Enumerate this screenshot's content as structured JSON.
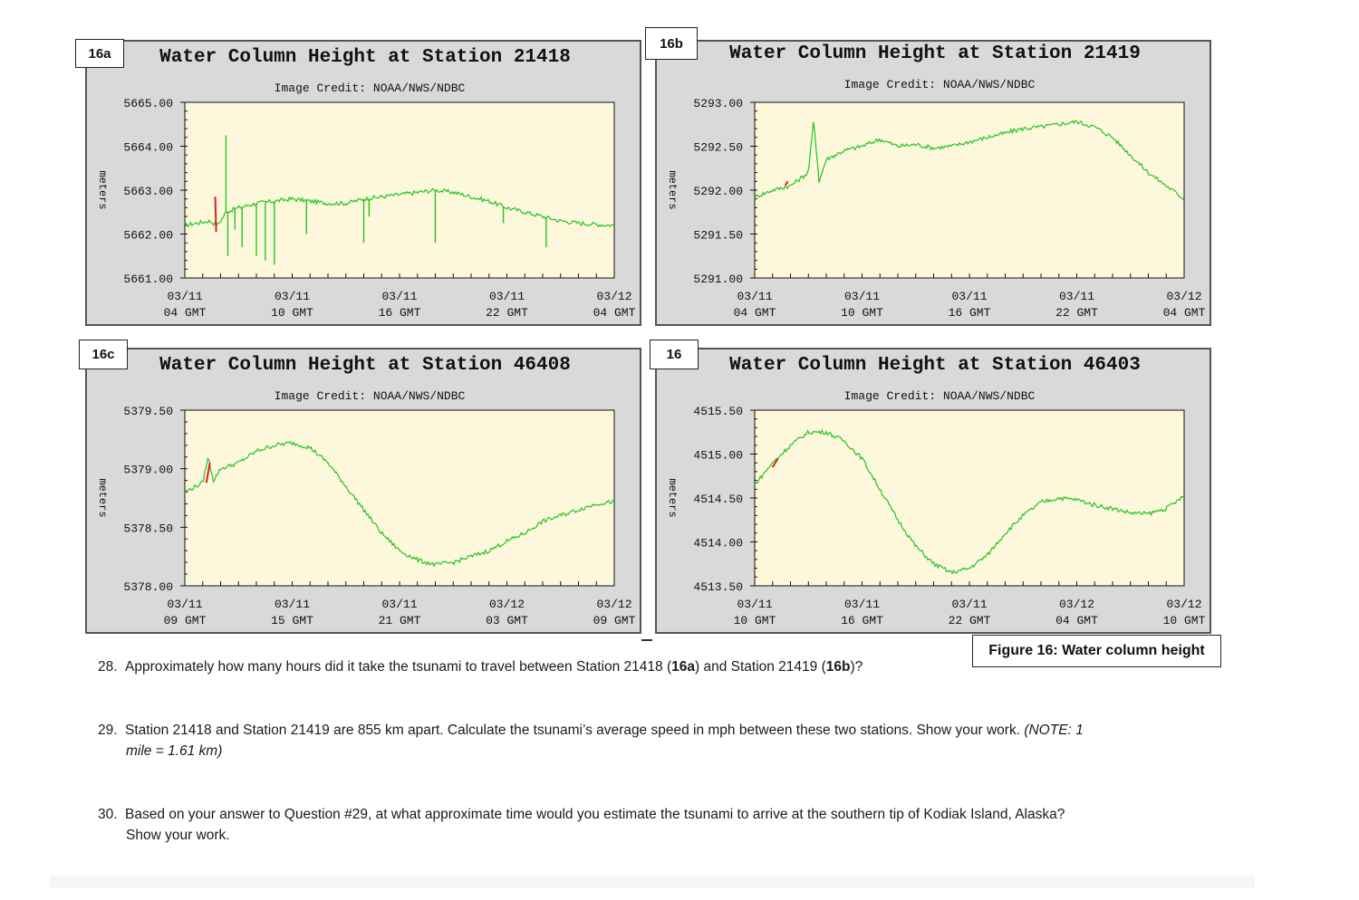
{
  "figure_caption": "Figure 16: Water column height",
  "image_credit": "Image Credit: NOAA/NWS/NDBC",
  "y_unit_label": "meters",
  "colors": {
    "plot_bg": "#fdf8dc",
    "panel_bg": "#d9d9d9",
    "series": "#22c422",
    "highlight": "#e11d1d"
  },
  "chart_data": [
    {
      "tag": "16a",
      "type": "line",
      "title": "Water Column Height at Station 21418",
      "ylabel": "meters",
      "ylim": [
        5661,
        5665
      ],
      "yticks": [
        "5665.00",
        "5664.00",
        "5663.00",
        "5662.00",
        "5661.00"
      ],
      "xticks": [
        [
          "03/11",
          "04 GMT"
        ],
        [
          "03/11",
          "10 GMT"
        ],
        [
          "03/11",
          "16 GMT"
        ],
        [
          "03/11",
          "22 GMT"
        ],
        [
          "03/12",
          "04 GMT"
        ]
      ],
      "x_hours": [
        0,
        24
      ],
      "series": [
        [
          0,
          5662.2
        ],
        [
          1.4,
          5662.3
        ],
        [
          1.8,
          5662.2
        ],
        [
          2,
          5662.3
        ],
        [
          2.3,
          5662.5
        ],
        [
          3,
          5662.6
        ],
        [
          4,
          5662.7
        ],
        [
          5,
          5662.75
        ],
        [
          6,
          5662.8
        ],
        [
          7,
          5662.75
        ],
        [
          8,
          5662.7
        ],
        [
          9,
          5662.7
        ],
        [
          10,
          5662.8
        ],
        [
          11,
          5662.85
        ],
        [
          12,
          5662.9
        ],
        [
          13,
          5662.95
        ],
        [
          14,
          5663.0
        ],
        [
          15,
          5662.95
        ],
        [
          16,
          5662.85
        ],
        [
          17,
          5662.75
        ],
        [
          18,
          5662.6
        ],
        [
          19,
          5662.5
        ],
        [
          20,
          5662.4
        ],
        [
          21,
          5662.3
        ],
        [
          22,
          5662.25
        ],
        [
          23,
          5662.22
        ],
        [
          24,
          5662.2
        ]
      ],
      "spikes": [
        [
          2.3,
          5664.25
        ],
        [
          2.4,
          5661.5
        ],
        [
          2.8,
          5662.1
        ],
        [
          3.2,
          5661.7
        ],
        [
          4,
          5661.5
        ],
        [
          4.5,
          5661.4
        ],
        [
          5,
          5661.3
        ],
        [
          6.8,
          5662.0
        ],
        [
          10,
          5661.8
        ],
        [
          10.3,
          5662.4
        ],
        [
          14,
          5661.8
        ],
        [
          17.8,
          5662.25
        ],
        [
          20.2,
          5661.7
        ]
      ],
      "highlight": [
        [
          1.7,
          5662.85
        ],
        [
          1.75,
          5662.05
        ]
      ]
    },
    {
      "tag": "16b",
      "type": "line",
      "title": "Water Column Height at Station 21419",
      "ylabel": "meters",
      "ylim": [
        5291,
        5293
      ],
      "yticks": [
        "5293.00",
        "5292.50",
        "5292.00",
        "5291.50",
        "5291.00"
      ],
      "xticks": [
        [
          "03/11",
          "04 GMT"
        ],
        [
          "03/11",
          "10 GMT"
        ],
        [
          "03/11",
          "16 GMT"
        ],
        [
          "03/11",
          "22 GMT"
        ],
        [
          "03/12",
          "04 GMT"
        ]
      ],
      "x_hours": [
        0,
        24
      ],
      "series": [
        [
          0,
          5291.92
        ],
        [
          1,
          5292.0
        ],
        [
          2,
          5292.05
        ],
        [
          3,
          5292.2
        ],
        [
          3.3,
          5292.8
        ],
        [
          3.6,
          5292.1
        ],
        [
          4,
          5292.35
        ],
        [
          5,
          5292.45
        ],
        [
          6,
          5292.5
        ],
        [
          7,
          5292.58
        ],
        [
          8,
          5292.5
        ],
        [
          9,
          5292.52
        ],
        [
          10,
          5292.48
        ],
        [
          11,
          5292.5
        ],
        [
          12,
          5292.55
        ],
        [
          13,
          5292.6
        ],
        [
          14,
          5292.65
        ],
        [
          15,
          5292.7
        ],
        [
          16,
          5292.72
        ],
        [
          17,
          5292.75
        ],
        [
          18,
          5292.78
        ],
        [
          19,
          5292.72
        ],
        [
          20,
          5292.6
        ],
        [
          21,
          5292.4
        ],
        [
          22,
          5292.2
        ],
        [
          23,
          5292.05
        ],
        [
          24,
          5291.9
        ]
      ],
      "highlight": [
        [
          1.7,
          5292.05
        ],
        [
          1.85,
          5292.1
        ]
      ]
    },
    {
      "tag": "16c",
      "type": "line",
      "title": "Water Column Height at Station 46408",
      "ylabel": "meters",
      "ylim": [
        5378,
        5379.5
      ],
      "yticks": [
        "5379.50",
        "5379.00",
        "5378.50",
        "5378.00"
      ],
      "xticks": [
        [
          "03/11",
          "09 GMT"
        ],
        [
          "03/11",
          "15 GMT"
        ],
        [
          "03/11",
          "21 GMT"
        ],
        [
          "03/12",
          "03 GMT"
        ],
        [
          "03/12",
          "09 GMT"
        ]
      ],
      "x_hours": [
        0,
        24
      ],
      "series": [
        [
          0,
          5378.8
        ],
        [
          1,
          5378.88
        ],
        [
          1.3,
          5379.1
        ],
        [
          1.6,
          5378.9
        ],
        [
          2,
          5379.0
        ],
        [
          3,
          5379.05
        ],
        [
          4,
          5379.15
        ],
        [
          5,
          5379.2
        ],
        [
          6,
          5379.22
        ],
        [
          7,
          5379.18
        ],
        [
          8,
          5379.05
        ],
        [
          9,
          5378.85
        ],
        [
          10,
          5378.65
        ],
        [
          11,
          5378.45
        ],
        [
          12,
          5378.3
        ],
        [
          13,
          5378.22
        ],
        [
          14,
          5378.18
        ],
        [
          15,
          5378.2
        ],
        [
          16,
          5378.25
        ],
        [
          17,
          5378.3
        ],
        [
          18,
          5378.38
        ],
        [
          19,
          5378.45
        ],
        [
          20,
          5378.55
        ],
        [
          21,
          5378.6
        ],
        [
          22,
          5378.65
        ],
        [
          23,
          5378.7
        ],
        [
          24,
          5378.72
        ]
      ],
      "highlight": [
        [
          1.2,
          5378.88
        ],
        [
          1.4,
          5379.05
        ]
      ]
    },
    {
      "tag": "16",
      "type": "line",
      "title": "Water Column Height at Station 46403",
      "ylabel": "meters",
      "ylim": [
        4513.5,
        4515.5
      ],
      "yticks": [
        "4515.50",
        "4515.00",
        "4514.50",
        "4514.00",
        "4513.50"
      ],
      "xticks": [
        [
          "03/11",
          "10 GMT"
        ],
        [
          "03/11",
          "16 GMT"
        ],
        [
          "03/11",
          "22 GMT"
        ],
        [
          "03/12",
          "04 GMT"
        ],
        [
          "03/12",
          "10 GMT"
        ]
      ],
      "x_hours": [
        0,
        24
      ],
      "series": [
        [
          0,
          4514.65
        ],
        [
          1,
          4514.9
        ],
        [
          2,
          4515.1
        ],
        [
          3,
          4515.25
        ],
        [
          4,
          4515.25
        ],
        [
          5,
          4515.15
        ],
        [
          6,
          4514.95
        ],
        [
          7,
          4514.6
        ],
        [
          8,
          4514.25
        ],
        [
          9,
          4513.95
        ],
        [
          10,
          4513.75
        ],
        [
          11,
          4513.65
        ],
        [
          12,
          4513.7
        ],
        [
          13,
          4513.85
        ],
        [
          14,
          4514.1
        ],
        [
          15,
          4514.3
        ],
        [
          16,
          4514.45
        ],
        [
          17,
          4514.5
        ],
        [
          18,
          4514.48
        ],
        [
          19,
          4514.42
        ],
        [
          20,
          4514.38
        ],
        [
          21,
          4514.33
        ],
        [
          22,
          4514.32
        ],
        [
          23,
          4514.38
        ],
        [
          24,
          4514.52
        ]
      ],
      "highlight": [
        [
          1,
          4514.85
        ],
        [
          1.3,
          4514.95
        ]
      ]
    }
  ],
  "questions": [
    {
      "number": "28.",
      "pre": "Approximately how many hours did it take the tsunami to travel between Station 21418 (",
      "b1": "16a",
      "mid": ") and Station 21419 (",
      "b2": "16b",
      "post": ")?"
    },
    {
      "number": "29.",
      "line1": "Station 21418 and Station 21419 are 855 km apart. Calculate the tsunami’s average speed in mph between these two stations. Show your work.",
      "note1": "(NOTE: 1",
      "note2": "mile = 1.61 km)"
    },
    {
      "number": "30.",
      "line1": "Based on your answer to Question #29, at what approximate time would you estimate the tsunami to arrive at the southern tip of Kodiak Island, Alaska?",
      "line2": "Show your work."
    }
  ]
}
